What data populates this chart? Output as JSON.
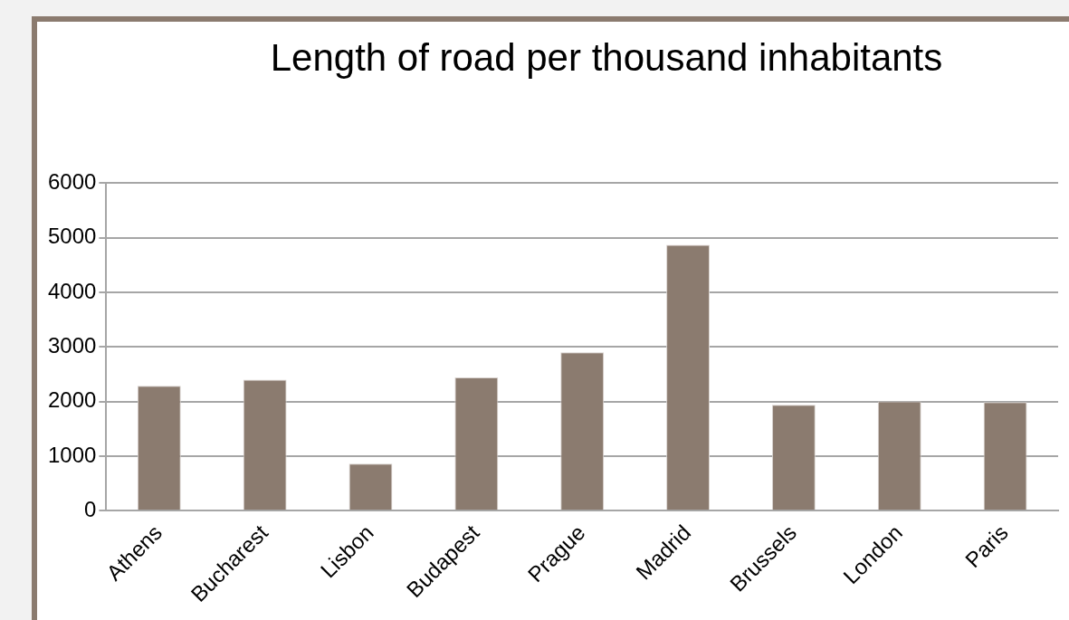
{
  "chart_data": {
    "type": "bar",
    "title": "Length of road per thousand inhabitants",
    "categories": [
      "Athens",
      "Bucharest",
      "Lisbon",
      "Budapest",
      "Prague",
      "Madrid",
      "Brussels",
      "London",
      "Paris"
    ],
    "values": [
      2290,
      2400,
      860,
      2440,
      2900,
      4870,
      1940,
      2000,
      1990
    ],
    "color": "#8b7b6f",
    "ylim": [
      0,
      6000
    ],
    "yticks": [
      0,
      1000,
      2000,
      3000,
      4000,
      5000,
      6000
    ],
    "grid": "y"
  }
}
